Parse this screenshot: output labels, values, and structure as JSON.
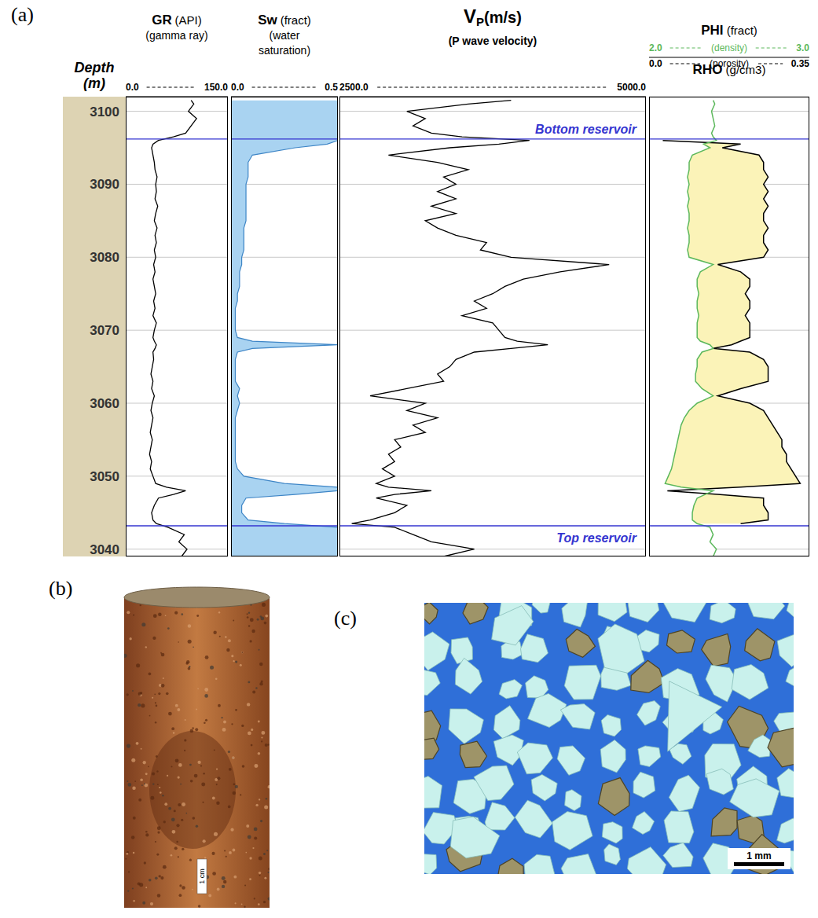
{
  "panel_label": "(a)",
  "depth": {
    "label": "Depth",
    "unit": "(m)",
    "grid": true,
    "ylim": [
      3039,
      3102
    ],
    "yticks": [
      3040,
      3050,
      3060,
      3070,
      3080,
      3090,
      3100
    ],
    "values": [
      3039,
      3040,
      3041,
      3042,
      3043,
      3043.5,
      3044,
      3045,
      3046,
      3047,
      3047.5,
      3048,
      3048.5,
      3049,
      3050,
      3051,
      3052,
      3053,
      3054,
      3055,
      3056,
      3057,
      3058,
      3059,
      3060,
      3061,
      3062,
      3063,
      3064,
      3065,
      3066,
      3067,
      3067.5,
      3068,
      3068.5,
      3069,
      3070,
      3071,
      3072,
      3073,
      3074,
      3075,
      3076,
      3077,
      3078,
      3079,
      3080,
      3081,
      3082,
      3083,
      3084,
      3085,
      3086,
      3087,
      3088,
      3089,
      3090,
      3091,
      3092,
      3093,
      3094,
      3095,
      3095.5,
      3096,
      3096.5,
      3097,
      3098,
      3099,
      3100,
      3101,
      3101.5
    ]
  },
  "annotations": [
    {
      "label": "Top reservoir",
      "depth": 3043.2
    },
    {
      "label": "Bottom reservoir",
      "depth": 3096.2
    }
  ],
  "chart_data": [
    {
      "type": "line",
      "title": "GR",
      "unit": "(API)",
      "subtitle": [
        "(gamma ray)"
      ],
      "xlim": [
        0,
        150
      ],
      "xticks": [
        {
          "value": 0,
          "label": "0.0"
        },
        {
          "value": 150,
          "label": "150.0"
        }
      ],
      "series": [
        {
          "name": "GR",
          "color": "#000000",
          "values": [
            82,
            90,
            78,
            86,
            62,
            45,
            40,
            38,
            42,
            48,
            70,
            88,
            60,
            44,
            40,
            36,
            38,
            35,
            37,
            39,
            36,
            38,
            40,
            37,
            39,
            42,
            38,
            40,
            37,
            39,
            41,
            40,
            43,
            45,
            42,
            40,
            42,
            45,
            40,
            43,
            41,
            44,
            42,
            40,
            43,
            41,
            44,
            42,
            45,
            43,
            46,
            42,
            44,
            47,
            43,
            45,
            44,
            46,
            43,
            42,
            40,
            38,
            40,
            48,
            70,
            88,
            96,
            104,
            92,
            100,
            96
          ]
        }
      ]
    },
    {
      "type": "area",
      "title": "Sw",
      "unit": "(fract)",
      "subtitle": [
        "(water",
        "saturation)"
      ],
      "xlim": [
        0,
        0.5
      ],
      "xticks": [
        {
          "value": 0,
          "label": "0.0"
        },
        0.5
      ],
      "series": [
        {
          "name": "Sw",
          "color": "#a9d3f1",
          "values": [
            0.5,
            0.5,
            0.5,
            0.5,
            0.5,
            0.25,
            0.08,
            0.05,
            0.05,
            0.07,
            0.3,
            0.5,
            0.5,
            0.25,
            0.06,
            0.03,
            0.02,
            0.02,
            0.02,
            0.02,
            0.02,
            0.02,
            0.02,
            0.03,
            0.04,
            0.03,
            0.04,
            0.02,
            0.02,
            0.02,
            0.02,
            0.03,
            0.1,
            0.5,
            0.1,
            0.03,
            0.02,
            0.02,
            0.02,
            0.02,
            0.03,
            0.03,
            0.04,
            0.04,
            0.04,
            0.05,
            0.05,
            0.06,
            0.06,
            0.06,
            0.06,
            0.07,
            0.07,
            0.07,
            0.07,
            0.07,
            0.07,
            0.08,
            0.08,
            0.08,
            0.1,
            0.3,
            0.45,
            0.5,
            0.5,
            0.5,
            0.5,
            0.5,
            0.5,
            0.5,
            0.5
          ]
        }
      ]
    },
    {
      "type": "line",
      "title_parts": [
        "V",
        "P",
        "(m/s)"
      ],
      "subtitle": [
        "(P wave velocity)"
      ],
      "xlim": [
        2500,
        5000
      ],
      "xticks": [
        {
          "value": 2500,
          "label": "2500.0"
        },
        {
          "value": 5000,
          "label": "5000.0"
        }
      ],
      "series": [
        {
          "name": "VP",
          "color": "#000000",
          "values": [
            3350,
            3600,
            3250,
            3100,
            2950,
            2600,
            2750,
            2950,
            3050,
            2800,
            2950,
            3250,
            2900,
            2800,
            2950,
            2850,
            2950,
            2900,
            3000,
            2950,
            3200,
            3100,
            3300,
            3050,
            3200,
            2750,
            3050,
            3350,
            3300,
            3400,
            3450,
            3600,
            3900,
            4200,
            3950,
            3850,
            3800,
            3750,
            3500,
            3700,
            3600,
            3750,
            3850,
            4000,
            4300,
            4700,
            3900,
            3650,
            3700,
            3450,
            3300,
            3200,
            3450,
            3250,
            3450,
            3300,
            3450,
            3350,
            3550,
            3300,
            2900,
            3400,
            3800,
            4050,
            3500,
            3250,
            3100,
            3200,
            3050,
            3550,
            3900
          ]
        }
      ]
    },
    {
      "type": "area",
      "series": [
        {
          "name": "PHI",
          "unit": "(fract)",
          "scale_label": "(porosity)",
          "xlim": [
            0,
            0.35
          ],
          "xticks": [
            {
              "value": 0,
              "label": "0.0"
            },
            0.35
          ],
          "color": "#000000",
          "values": [
            null,
            null,
            null,
            null,
            null,
            0.2,
            0.26,
            0.26,
            0.25,
            0.25,
            0.15,
            0.04,
            0.2,
            0.33,
            0.32,
            0.31,
            0.3,
            0.3,
            0.29,
            0.29,
            0.28,
            0.27,
            0.26,
            0.25,
            0.22,
            0.15,
            0.2,
            0.26,
            0.26,
            0.26,
            0.25,
            0.22,
            0.14,
            0.18,
            0.2,
            0.22,
            0.22,
            0.22,
            0.21,
            0.22,
            0.22,
            0.21,
            0.22,
            0.22,
            0.2,
            0.15,
            0.25,
            0.26,
            0.25,
            0.25,
            0.26,
            0.25,
            0.25,
            0.26,
            0.25,
            0.26,
            0.25,
            0.26,
            0.25,
            0.25,
            0.24,
            0.16,
            0.2,
            0.03,
            null,
            null,
            null,
            null,
            null,
            null,
            null
          ]
        },
        {
          "name": "RHO",
          "unit": "(g/cm3)",
          "scale_label": "(density)",
          "xlim": [
            2,
            3
          ],
          "xticks": [
            {
              "value": 2,
              "label": "2.0"
            },
            {
              "value": 3,
              "label": "3.0"
            }
          ],
          "color": "#5cb85c",
          "values": [
            2.4,
            2.42,
            2.38,
            2.4,
            2.38,
            2.3,
            2.27,
            2.27,
            2.28,
            2.3,
            2.35,
            2.4,
            2.2,
            2.1,
            2.12,
            2.14,
            2.15,
            2.16,
            2.17,
            2.18,
            2.19,
            2.2,
            2.22,
            2.25,
            2.3,
            2.4,
            2.33,
            2.29,
            2.29,
            2.3,
            2.3,
            2.33,
            2.4,
            2.38,
            2.32,
            2.3,
            2.3,
            2.3,
            2.31,
            2.3,
            2.3,
            2.31,
            2.3,
            2.3,
            2.32,
            2.4,
            2.25,
            2.24,
            2.25,
            2.25,
            2.24,
            2.25,
            2.25,
            2.24,
            2.25,
            2.24,
            2.25,
            2.24,
            2.25,
            2.25,
            2.27,
            2.38,
            2.34,
            2.42,
            2.4,
            2.39,
            2.41,
            2.4,
            2.39,
            2.41,
            2.4
          ]
        }
      ]
    }
  ],
  "panels": [
    {
      "label": "(b)",
      "scale_bar": "1 cm"
    },
    {
      "label": "(c)",
      "scale_bar": "1 mm"
    }
  ]
}
